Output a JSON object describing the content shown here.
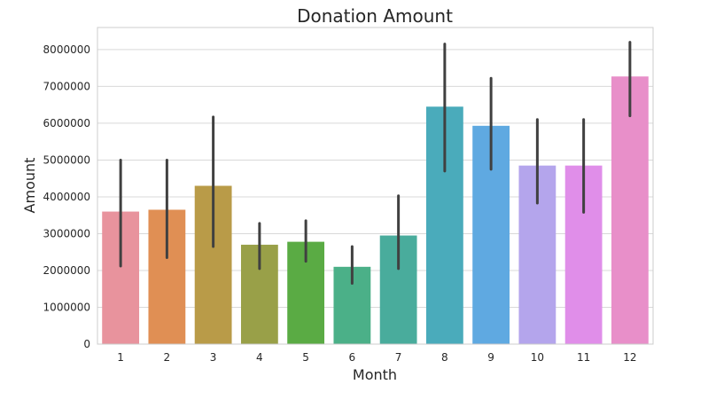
{
  "chart_data": {
    "type": "bar",
    "title": "Donation Amount",
    "xlabel": "Month",
    "ylabel": "Amount",
    "categories": [
      "1",
      "2",
      "3",
      "4",
      "5",
      "6",
      "7",
      "8",
      "9",
      "10",
      "11",
      "12"
    ],
    "values": [
      3600000,
      3650000,
      4300000,
      2700000,
      2780000,
      2100000,
      2950000,
      6450000,
      5930000,
      4850000,
      4850000,
      7270000
    ],
    "error_low": [
      2120000,
      2350000,
      2650000,
      2050000,
      2250000,
      1650000,
      2050000,
      4700000,
      4750000,
      3830000,
      3580000,
      6200000
    ],
    "error_high": [
      5000000,
      5000000,
      6170000,
      3280000,
      3350000,
      2650000,
      4030000,
      8150000,
      7220000,
      6100000,
      6100000,
      8200000
    ],
    "colors": [
      "#e8939d",
      "#e08f54",
      "#b99b48",
      "#99a048",
      "#5aab44",
      "#4bb088",
      "#49ac9c",
      "#4aabbb",
      "#5fa9e1",
      "#b4a5ec",
      "#e08ee9",
      "#e88fc9"
    ],
    "yticks": [
      0,
      1000000,
      2000000,
      3000000,
      4000000,
      5000000,
      6000000,
      7000000,
      8000000
    ],
    "ytick_labels": [
      "0",
      "1000000",
      "2000000",
      "3000000",
      "4000000",
      "5000000",
      "6000000",
      "7000000",
      "8000000"
    ],
    "ylim": [
      0,
      8600000
    ],
    "grid": "horizontal",
    "style": {
      "grid_color": "#d9d9d9",
      "frame_color": "#cccccc",
      "errorbar_color": "#404040"
    }
  }
}
